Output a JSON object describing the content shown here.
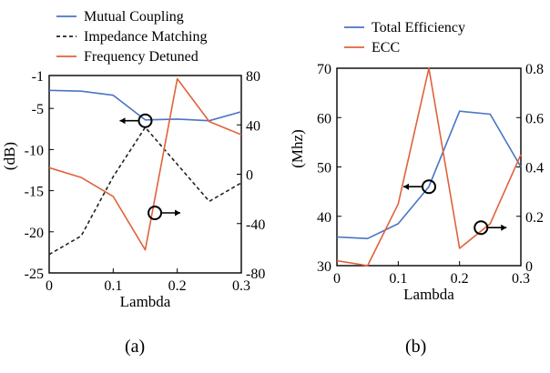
{
  "chart_data": [
    {
      "panel": "(a)",
      "type": "line",
      "xlabel": "Lambda",
      "ylabel_left": "(dB)",
      "ylabel_right": "",
      "x": [
        0,
        0.05,
        0.1,
        0.15,
        0.2,
        0.25,
        0.3
      ],
      "xlim": [
        0,
        0.3
      ],
      "xticks": [
        "0",
        "0.1",
        "0.2",
        "0.3"
      ],
      "ylim_left": [
        -25,
        -1
      ],
      "yticks_left": [
        "-1",
        "-5",
        "-10",
        "-15",
        "-20",
        "-25"
      ],
      "ylim_right": [
        -80,
        80
      ],
      "yticks_right": [
        "80",
        "40",
        "0",
        "-40",
        "-80"
      ],
      "series": [
        {
          "name": "Mutual Coupling",
          "axis": "left",
          "color": "#4a74c4",
          "dash": "solid",
          "values": [
            -2.8,
            -2.9,
            -3.4,
            -6.4,
            -6.3,
            -6.5,
            -5.4
          ]
        },
        {
          "name": "Impedance Matching",
          "axis": "right",
          "color": "#222222",
          "dash": "dashed",
          "values": [
            -65,
            -50,
            -2,
            38,
            8,
            -22,
            -7
          ]
        },
        {
          "name": "Frequency Detuned",
          "axis": "left",
          "color": "#e0623a",
          "dash": "solid",
          "values": [
            -12.2,
            -13.4,
            -15.7,
            -22.2,
            -1.4,
            -6.6,
            -8.2
          ]
        }
      ],
      "legend": [
        "Mutual Coupling",
        "Impedance Matching",
        "Frequency Detuned"
      ],
      "legend_position": "top-left",
      "annotations": [
        {
          "series": "Mutual Coupling",
          "x": 0.15,
          "y_axis": "left",
          "y": -6.5,
          "arrow": "left"
        },
        {
          "series": "Frequency Detuned",
          "x": 0.165,
          "y_axis": "left",
          "y": -17.7,
          "arrow": "right"
        }
      ]
    },
    {
      "panel": "(b)",
      "type": "line",
      "xlabel": "Lambda",
      "ylabel_left": "(Mhz)",
      "ylabel_right": "",
      "x": [
        0,
        0.05,
        0.1,
        0.15,
        0.2,
        0.25,
        0.3
      ],
      "xlim": [
        0,
        0.3
      ],
      "xticks": [
        "0",
        "0.1",
        "0.2",
        "0.3"
      ],
      "ylim_left": [
        30,
        70
      ],
      "yticks_left": [
        "70",
        "60",
        "50",
        "40",
        "30"
      ],
      "ylim_right": [
        0,
        0.8
      ],
      "yticks_right": [
        "0.8",
        "0.6",
        "0.4",
        "0.2",
        "0"
      ],
      "series": [
        {
          "name": "Total Efficiency",
          "axis": "left",
          "color": "#4a74c4",
          "dash": "solid",
          "values": [
            35.8,
            35.5,
            38.5,
            46.0,
            61.3,
            60.7,
            50.0
          ]
        },
        {
          "name": "ECC",
          "axis": "right",
          "color": "#e0623a",
          "dash": "solid",
          "values": [
            0.02,
            0.0,
            0.25,
            0.8,
            0.07,
            0.17,
            0.45
          ]
        }
      ],
      "legend": [
        "Total Efficiency",
        "ECC"
      ],
      "legend_position": "top-left",
      "annotations": [
        {
          "series": "Total Efficiency",
          "x": 0.15,
          "y_axis": "left",
          "y": 46.0,
          "arrow": "left"
        },
        {
          "series": "ECC",
          "x": 0.235,
          "y_axis": "left",
          "y": 37.7,
          "arrow": "right"
        }
      ]
    }
  ],
  "captions": {
    "a": "(a)",
    "b": "(b)"
  }
}
